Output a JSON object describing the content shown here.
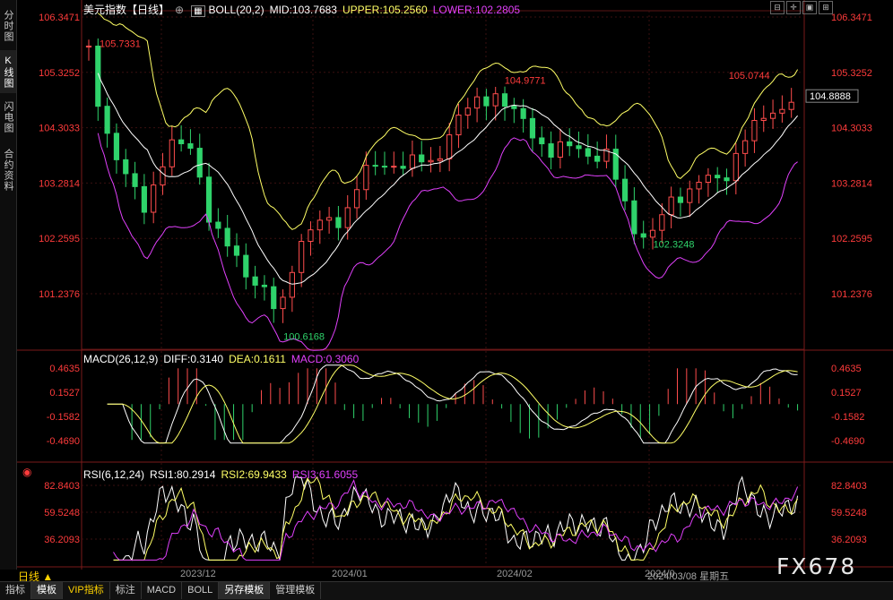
{
  "sidebar": {
    "tabs": [
      "分时图",
      "K线图",
      "闪电图",
      "合约资料"
    ],
    "active": 1
  },
  "main": {
    "title": "美元指数【日线】",
    "indicator": "BOLL(20,2)",
    "mid": "MID:103.7683",
    "upper": "UPPER:105.2560",
    "lower": "LOWER:102.2805",
    "yticks": [
      "106.3471",
      "105.3252",
      "104.3033",
      "103.2814",
      "102.2595",
      "101.2376"
    ],
    "last_price": "104.8888",
    "annotations": [
      "105.7331",
      "104.9771",
      "105.0744",
      "102.3248",
      "100.6168"
    ]
  },
  "macd": {
    "label": "MACD(26,12,9)",
    "diff": "DIFF:0.3140",
    "dea": "DEA:0.1611",
    "macd": "MACD:0.3060",
    "yticks": [
      "0.4635",
      "0.1527",
      "-0.1582",
      "-0.4690"
    ]
  },
  "rsi": {
    "label": "RSI(6,12,24)",
    "rsi1": "RSI1:80.2914",
    "rsi2": "RSI2:69.9433",
    "rsi3": "RSI3:61.6055",
    "yticks": [
      "82.8403",
      "59.5248",
      "36.2093"
    ]
  },
  "timeline": {
    "labels": [
      "2023/12",
      "2024/01",
      "2024/02",
      "2024/0"
    ],
    "period": "日线",
    "current": "2024/03/08 星期五"
  },
  "bottom_tabs": [
    "指标",
    "模板",
    "VIP指标",
    "标注",
    "MACD",
    "BOLL",
    "另存模板",
    "管理模板"
  ],
  "bottom_active": [
    1,
    6
  ],
  "watermark": "FX678",
  "colors": {
    "up": "#ff4d4d",
    "down": "#2fd36b",
    "mid": "#ffffff",
    "upper": "#ffff66",
    "lower": "#e040fb",
    "text_red": "#ff3b3b",
    "grid": "#3a1010"
  }
}
